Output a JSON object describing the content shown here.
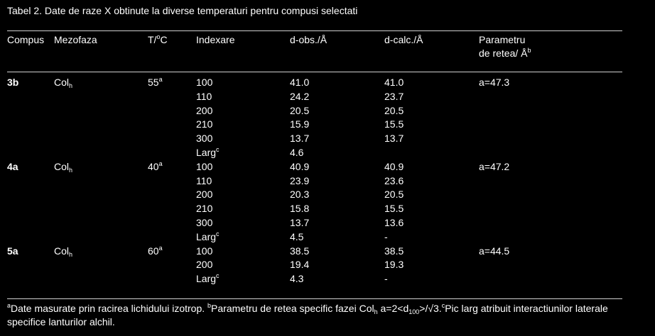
{
  "caption": "Tabel 2. Date de raze X obtinute la diverse temperaturi pentru compusi selectati",
  "headers": {
    "compus": "Compus",
    "mezofaza": "Mezofaza",
    "temp_prefix": "T/",
    "temp_sup": "o",
    "temp_suffix": "C",
    "indexare": "Indexare",
    "dobs": "d-obs./Å",
    "dcalc": "d-calc./Å",
    "param_line1": "Parametru",
    "param_line2": "de retea/ Å",
    "param_sup": "b"
  },
  "groups": [
    {
      "compus": "3b",
      "phase": "Col",
      "phase_sub": "h",
      "temp": "55",
      "temp_sup": "a",
      "rows": [
        {
          "index": "100",
          "dobs": "41.0",
          "dcalc": "41.0",
          "param": "a=47.3"
        },
        {
          "index": "110",
          "dobs": "24.2",
          "dcalc": "23.7",
          "param": ""
        },
        {
          "index": "200",
          "dobs": "20.5",
          "dcalc": "20.5",
          "param": ""
        },
        {
          "index": "210",
          "dobs": "15.9",
          "dcalc": "15.5",
          "param": ""
        },
        {
          "index": "300",
          "dobs": "13.7",
          "dcalc": "13.7",
          "param": ""
        },
        {
          "index": "Larg",
          "index_sup": "c",
          "dobs": "4.6",
          "dcalc": "",
          "param": ""
        }
      ]
    },
    {
      "compus": "4a",
      "phase": "Col",
      "phase_sub": "h",
      "temp": "40",
      "temp_sup": "a",
      "rows": [
        {
          "index": "100",
          "dobs": "40.9",
          "dcalc": "40.9",
          "param": "a=47.2"
        },
        {
          "index": "110",
          "dobs": "23.9",
          "dcalc": "23.6",
          "param": ""
        },
        {
          "index": "200",
          "dobs": "20.3",
          "dcalc": "20.5",
          "param": ""
        },
        {
          "index": "210",
          "dobs": "15.8",
          "dcalc": "15.5",
          "param": ""
        },
        {
          "index": "300",
          "dobs": "13.7",
          "dcalc": "13.6",
          "param": ""
        },
        {
          "index": "Larg",
          "index_sup": "c",
          "dobs": "4.5",
          "dcalc": "-",
          "param": ""
        }
      ]
    },
    {
      "compus": "5a",
      "phase": "Col",
      "phase_sub": "h",
      "temp": "60",
      "temp_sup": "a",
      "rows": [
        {
          "index": "100",
          "dobs": "38.5",
          "dcalc": "38.5",
          "param": "a=44.5"
        },
        {
          "index": "200",
          "dobs": "19.4",
          "dcalc": "19.3",
          "param": ""
        },
        {
          "index": "Larg",
          "index_sup": "c",
          "dobs": "4.3",
          "dcalc": "-",
          "param": ""
        }
      ]
    }
  ],
  "footnote": {
    "a_mark": "a",
    "a_text": "Date masurate prin racirea lichidului izotrop. ",
    "b_mark": "b",
    "b_text": "Parametru de retea specific fazei Col",
    "b_sub": "h",
    "b_text2": " a=2<d",
    "b_sub2": "100",
    "b_text3": ">/√3.",
    "c_mark": "c",
    "c_text": "Pic larg atribuit interactiunilor laterale specifice lanturilor alchil."
  },
  "colors": {
    "background": "#000000",
    "text": "#ffffff",
    "rule": "#d0d0d0"
  }
}
